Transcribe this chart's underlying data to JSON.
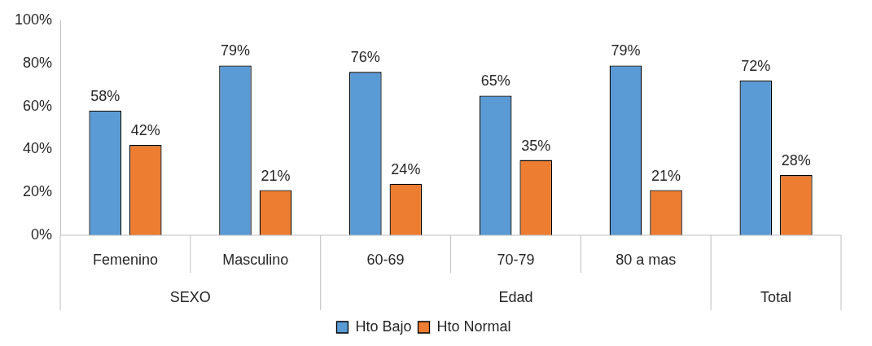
{
  "chart_data": {
    "type": "bar",
    "categories": [
      "Femenino",
      "Masculino",
      "60-69",
      "70-79",
      "80 a mas",
      null
    ],
    "series": [
      {
        "name": "Hto Bajo",
        "color": "#5b9bd5",
        "values": [
          58,
          79,
          76,
          65,
          79,
          72
        ],
        "value_labels": [
          "58%",
          "79%",
          "76%",
          "65%",
          "79%",
          "72%"
        ]
      },
      {
        "name": "Hto Normal",
        "color": "#ed7d31",
        "values": [
          42,
          21,
          24,
          35,
          21,
          28
        ],
        "value_labels": [
          "42%",
          "21%",
          "24%",
          "35%",
          "21%",
          "28%"
        ]
      }
    ],
    "ylim": [
      0,
      100
    ],
    "yticks": [
      {
        "value": 0,
        "label": "0%"
      },
      {
        "value": 20,
        "label": "20%"
      },
      {
        "value": 40,
        "label": "40%"
      },
      {
        "value": 60,
        "label": "60%"
      },
      {
        "value": 80,
        "label": "80%"
      },
      {
        "value": 100,
        "label": "100%"
      }
    ],
    "annotations": [
      "SEXO",
      "Edad",
      "Total"
    ],
    "grid": false,
    "legend": "bottom"
  }
}
